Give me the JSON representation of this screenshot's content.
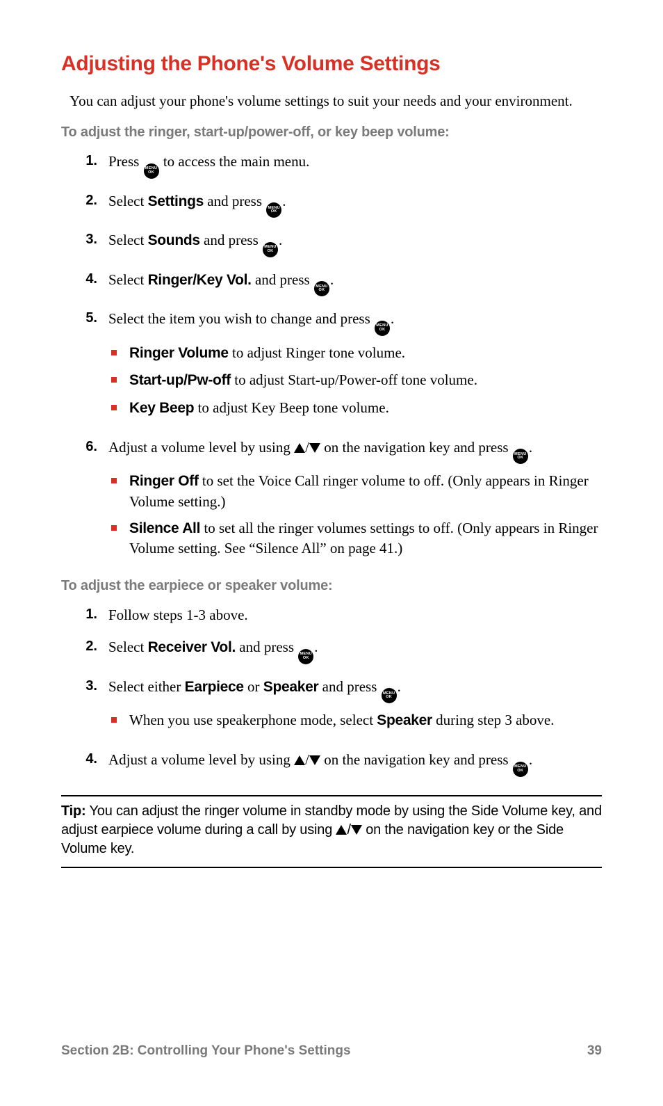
{
  "title": "Adjusting the Phone's Volume Settings",
  "intro": "You can adjust your phone's volume settings to suit your needs and your environment.",
  "subhead1": "To adjust the ringer, start-up/power-off, or key beep volume:",
  "list1": {
    "s1": {
      "num": "1.",
      "pre": "Press ",
      "post": " to access the main menu."
    },
    "s2": {
      "num": "2.",
      "pre": "Select ",
      "bold": "Settings",
      "mid": " and press ",
      "post": "."
    },
    "s3": {
      "num": "3.",
      "pre": "Select ",
      "bold": "Sounds",
      "mid": " and press ",
      "post": "."
    },
    "s4": {
      "num": "4.",
      "pre": "Select ",
      "bold": "Ringer/Key Vol.",
      "mid": " and press ",
      "post": "."
    },
    "s5": {
      "num": "5.",
      "pre": "Select the item you wish to change and press ",
      "post": ".",
      "b1": {
        "bold": "Ringer Volume",
        "rest": " to adjust Ringer tone volume."
      },
      "b2": {
        "bold": "Start-up/Pw-off",
        "rest": " to adjust Start-up/Power-off tone volume."
      },
      "b3": {
        "bold": "Key Beep",
        "rest": " to adjust Key Beep tone volume."
      }
    },
    "s6": {
      "num": "6.",
      "pre": "Adjust a volume level by using ",
      "slash": "/",
      "mid": " on the navigation key and press ",
      "post": ".",
      "b1": {
        "bold": "Ringer Off",
        "rest": " to set the Voice Call ringer volume to off. (Only appears in Ringer Volume setting.)"
      },
      "b2": {
        "bold": "Silence All",
        "rest": " to set all the ringer volumes settings to off. (Only appears in Ringer Volume setting. See “Silence All” on page 41.)"
      }
    }
  },
  "subhead2": "To adjust the earpiece or speaker volume:",
  "list2": {
    "s1": {
      "num": "1.",
      "text": "Follow steps 1-3 above."
    },
    "s2": {
      "num": "2.",
      "pre": "Select ",
      "bold": "Receiver Vol.",
      "mid": " and press ",
      "post": "."
    },
    "s3": {
      "num": "3.",
      "pre": "Select either ",
      "bold1": "Earpiece",
      "or": " or ",
      "bold2": "Speaker",
      "mid": " and press ",
      "post": ".",
      "b1": {
        "pre": "When you use speakerphone mode, select ",
        "bold": "Speaker",
        "rest": " during step 3 above."
      }
    },
    "s4": {
      "num": "4.",
      "pre": "Adjust a volume level by using ",
      "slash": "/",
      "mid": " on the navigation key and press ",
      "post": "."
    }
  },
  "tip": {
    "label": "Tip:",
    "pre": " You can adjust the ringer volume in standby mode by using the Side Volume key, and adjust earpiece volume during a call by using ",
    "slash": "/",
    "post": " on the navigation key or the Side Volume key."
  },
  "footer": {
    "section": "Section 2B: Controlling Your Phone's Settings",
    "page": "39"
  },
  "icons": {
    "menu_top": "MENU",
    "menu_bottom": "OK"
  },
  "colors": {
    "accent": "#d93025",
    "muted": "#7a7a7a",
    "text": "#000000",
    "background": "#ffffff"
  }
}
